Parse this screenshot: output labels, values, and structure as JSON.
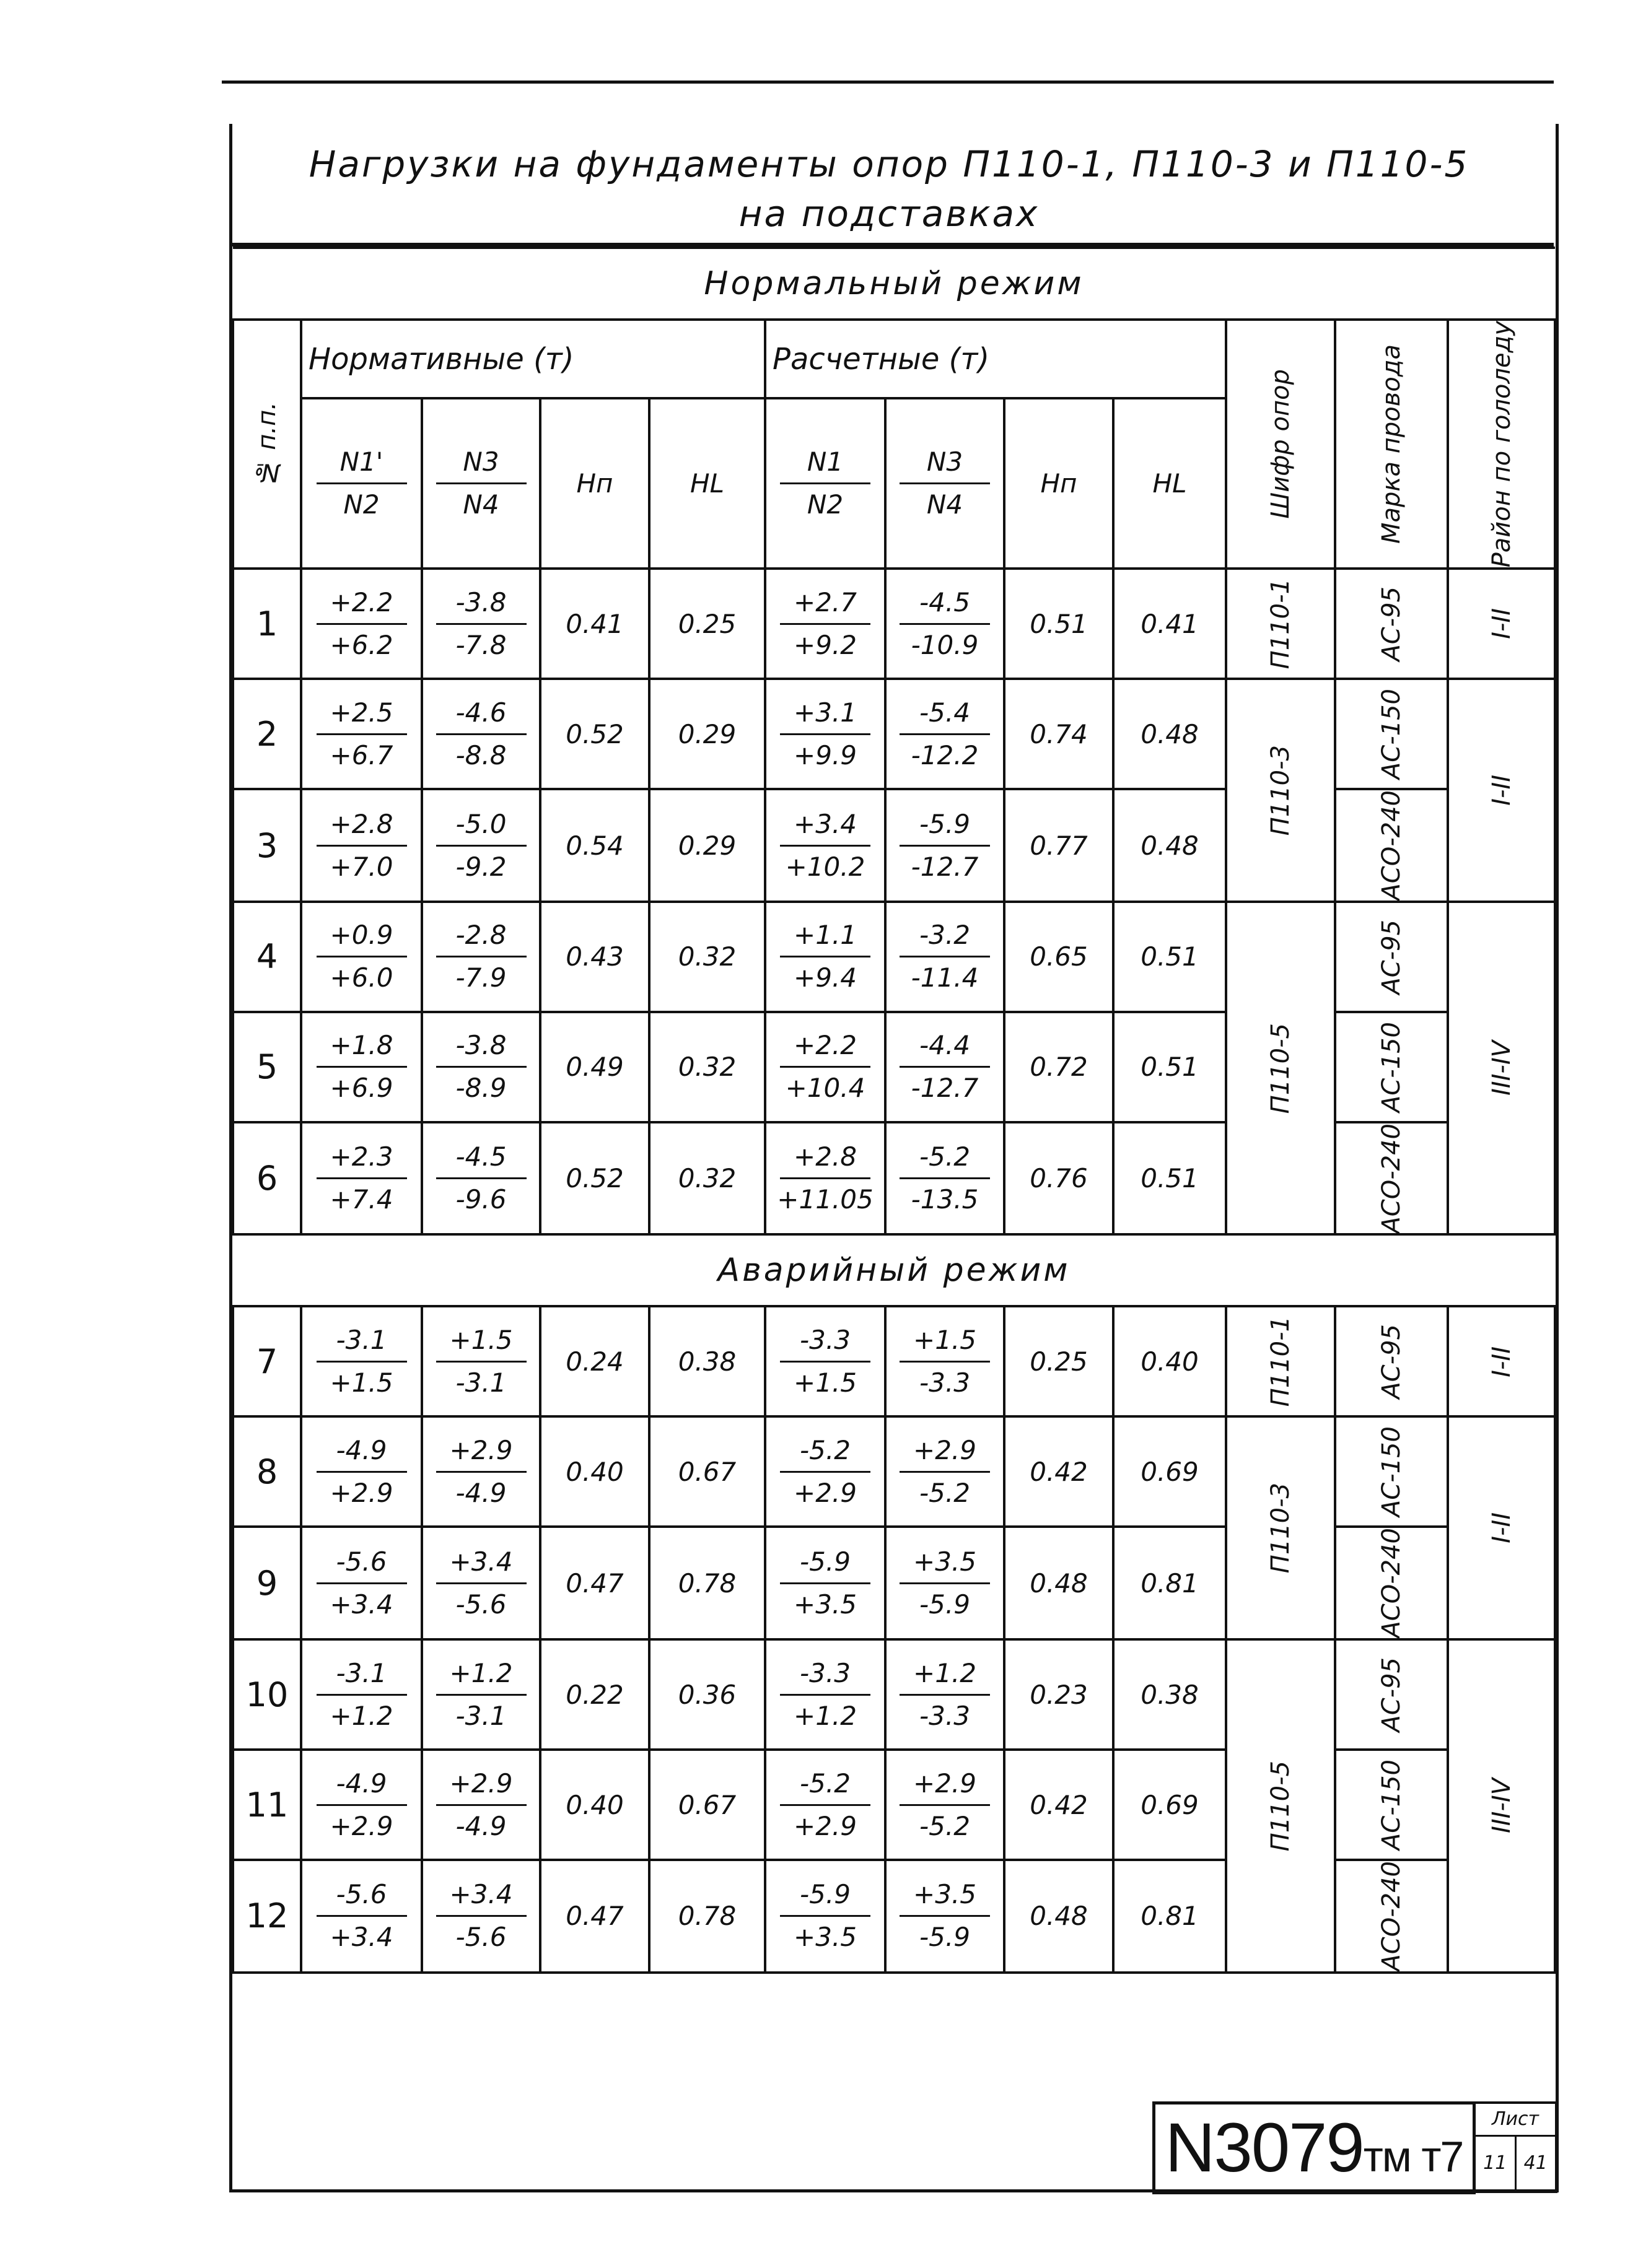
{
  "title": {
    "line1": "Нагрузки на фундаменты опор П110-1, П110-3 и П110-5",
    "line2": "на подставках"
  },
  "headers": {
    "row_no": "№ п.п.",
    "normative": "Нормативные (т)",
    "design": "Расчетные (т)",
    "n1p": "N1'",
    "n1": "N1",
    "n2": "N2",
    "n3": "N3",
    "n4": "N4",
    "hp": "Hп",
    "hl": "HL",
    "support_code": "Шифр опор",
    "wire_grade": "Марка провода",
    "ice_region": "Район по гололеду"
  },
  "modes": [
    {
      "label": "Нормальный режим",
      "rows": [
        {
          "no": "1",
          "n_n1": "+2.2",
          "n_n2": "+6.2",
          "n_n3": "-3.8",
          "n_n4": "-7.8",
          "n_hp": "0.41",
          "n_hl": "0.25",
          "d_n1": "+2.7",
          "d_n2": "+9.2",
          "d_n3": "-4.5",
          "d_n4": "-10.9",
          "d_hp": "0.51",
          "d_hl": "0.41",
          "wire": "АС-95"
        },
        {
          "no": "2",
          "n_n1": "+2.5",
          "n_n2": "+6.7",
          "n_n3": "-4.6",
          "n_n4": "-8.8",
          "n_hp": "0.52",
          "n_hl": "0.29",
          "d_n1": "+3.1",
          "d_n2": "+9.9",
          "d_n3": "-5.4",
          "d_n4": "-12.2",
          "d_hp": "0.74",
          "d_hl": "0.48",
          "wire": "АС-150"
        },
        {
          "no": "3",
          "n_n1": "+2.8",
          "n_n2": "+7.0",
          "n_n3": "-5.0",
          "n_n4": "-9.2",
          "n_hp": "0.54",
          "n_hl": "0.29",
          "d_n1": "+3.4",
          "d_n2": "+10.2",
          "d_n3": "-5.9",
          "d_n4": "-12.7",
          "d_hp": "0.77",
          "d_hl": "0.48",
          "wire": "АСО-240"
        },
        {
          "no": "4",
          "n_n1": "+0.9",
          "n_n2": "+6.0",
          "n_n3": "-2.8",
          "n_n4": "-7.9",
          "n_hp": "0.43",
          "n_hl": "0.32",
          "d_n1": "+1.1",
          "d_n2": "+9.4",
          "d_n3": "-3.2",
          "d_n4": "-11.4",
          "d_hp": "0.65",
          "d_hl": "0.51",
          "wire": "АС-95"
        },
        {
          "no": "5",
          "n_n1": "+1.8",
          "n_n2": "+6.9",
          "n_n3": "-3.8",
          "n_n4": "-8.9",
          "n_hp": "0.49",
          "n_hl": "0.32",
          "d_n1": "+2.2",
          "d_n2": "+10.4",
          "d_n3": "-4.4",
          "d_n4": "-12.7",
          "d_hp": "0.72",
          "d_hl": "0.51",
          "wire": "АС-150"
        },
        {
          "no": "6",
          "n_n1": "+2.3",
          "n_n2": "+7.4",
          "n_n3": "-4.5",
          "n_n4": "-9.6",
          "n_hp": "0.52",
          "n_hl": "0.32",
          "d_n1": "+2.8",
          "d_n2": "+11.05",
          "d_n3": "-5.2",
          "d_n4": "-13.5",
          "d_hp": "0.76",
          "d_hl": "0.51",
          "wire": "АСО-240"
        }
      ],
      "groups": [
        {
          "span": 1,
          "support": "П110-1",
          "region": "I-II"
        },
        {
          "span": 2,
          "support": "П110-3",
          "region": "I-II"
        },
        {
          "span": 3,
          "support": "П110-5",
          "region": "III-IV"
        }
      ]
    },
    {
      "label": "Аварийный режим",
      "rows": [
        {
          "no": "7",
          "n_n1": "-3.1",
          "n_n2": "+1.5",
          "n_n3": "+1.5",
          "n_n4": "-3.1",
          "n_hp": "0.24",
          "n_hl": "0.38",
          "d_n1": "-3.3",
          "d_n2": "+1.5",
          "d_n3": "+1.5",
          "d_n4": "-3.3",
          "d_hp": "0.25",
          "d_hl": "0.40",
          "wire": "АС-95"
        },
        {
          "no": "8",
          "n_n1": "-4.9",
          "n_n2": "+2.9",
          "n_n3": "+2.9",
          "n_n4": "-4.9",
          "n_hp": "0.40",
          "n_hl": "0.67",
          "d_n1": "-5.2",
          "d_n2": "+2.9",
          "d_n3": "+2.9",
          "d_n4": "-5.2",
          "d_hp": "0.42",
          "d_hl": "0.69",
          "wire": "АС-150"
        },
        {
          "no": "9",
          "n_n1": "-5.6",
          "n_n2": "+3.4",
          "n_n3": "+3.4",
          "n_n4": "-5.6",
          "n_hp": "0.47",
          "n_hl": "0.78",
          "d_n1": "-5.9",
          "d_n2": "+3.5",
          "d_n3": "+3.5",
          "d_n4": "-5.9",
          "d_hp": "0.48",
          "d_hl": "0.81",
          "wire": "АСО-240"
        },
        {
          "no": "10",
          "n_n1": "-3.1",
          "n_n2": "+1.2",
          "n_n3": "+1.2",
          "n_n4": "-3.1",
          "n_hp": "0.22",
          "n_hl": "0.36",
          "d_n1": "-3.3",
          "d_n2": "+1.2",
          "d_n3": "+1.2",
          "d_n4": "-3.3",
          "d_hp": "0.23",
          "d_hl": "0.38",
          "wire": "АС-95"
        },
        {
          "no": "11",
          "n_n1": "-4.9",
          "n_n2": "+2.9",
          "n_n3": "+2.9",
          "n_n4": "-4.9",
          "n_hp": "0.40",
          "n_hl": "0.67",
          "d_n1": "-5.2",
          "d_n2": "+2.9",
          "d_n3": "+2.9",
          "d_n4": "-5.2",
          "d_hp": "0.42",
          "d_hl": "0.69",
          "wire": "АС-150"
        },
        {
          "no": "12",
          "n_n1": "-5.6",
          "n_n2": "+3.4",
          "n_n3": "+3.4",
          "n_n4": "-5.6",
          "n_hp": "0.47",
          "n_hl": "0.78",
          "d_n1": "-5.9",
          "d_n2": "+3.5",
          "d_n3": "+3.5",
          "d_n4": "-5.9",
          "d_hp": "0.48",
          "d_hl": "0.81",
          "wire": "АСО-240"
        }
      ],
      "groups": [
        {
          "span": 1,
          "support": "П110-1",
          "region": "I-II"
        },
        {
          "span": 2,
          "support": "П110-3",
          "region": "I-II"
        },
        {
          "span": 3,
          "support": "П110-5",
          "region": "III-IV"
        }
      ]
    }
  ],
  "stamp": {
    "code": "N3079",
    "suffix": "тм т7"
  },
  "sheet": {
    "label": "Лист",
    "number": "11",
    "total": "41"
  }
}
